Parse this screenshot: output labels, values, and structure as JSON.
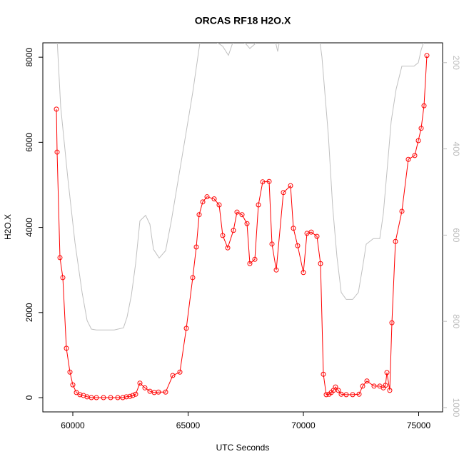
{
  "chart_data": {
    "type": "line",
    "title": "ORCAS RF18 H2O.X",
    "xlabel": "UTC Seconds",
    "ylabel": "H2O.X",
    "xlim": [
      58700,
      76037
    ],
    "ylim": [
      -335,
      8338
    ],
    "y2lim": [
      1010,
      154
    ],
    "xticks": [
      60000,
      65000,
      70000,
      75000
    ],
    "yticks": [
      0,
      2000,
      4000,
      6000,
      8000
    ],
    "y2ticks": [
      200,
      400,
      600,
      800,
      1000
    ],
    "series": [
      {
        "name": "H2O.X",
        "color": "#ff0000",
        "markers": true,
        "x": [
          59288,
          59319,
          59443,
          59567,
          59721,
          59876,
          60000,
          60155,
          60310,
          60464,
          60619,
          60805,
          61022,
          61331,
          61641,
          61950,
          62167,
          62322,
          62477,
          62601,
          62724,
          62910,
          63127,
          63344,
          63530,
          63715,
          64025,
          64335,
          64644,
          64923,
          65201,
          65356,
          65480,
          65635,
          65821,
          66130,
          66347,
          66502,
          66719,
          66966,
          67121,
          67338,
          67555,
          67678,
          67895,
          68050,
          68235,
          68514,
          68638,
          68824,
          69133,
          69443,
          69566,
          69752,
          70000,
          70155,
          70340,
          70588,
          70743,
          70867,
          70991,
          71115,
          71208,
          71301,
          71393,
          71517,
          71641,
          71858,
          72137,
          72415,
          72570,
          72756,
          73065,
          73313,
          73468,
          73561,
          73623,
          73746,
          73839,
          73994,
          74273,
          74551,
          74830,
          74985,
          75108,
          75232,
          75356
        ],
        "values": [
          6780,
          5770,
          3290,
          2820,
          1160,
          600,
          300,
          120,
          70,
          50,
          20,
          0,
          0,
          0,
          0,
          0,
          0,
          20,
          30,
          50,
          80,
          340,
          230,
          150,
          120,
          130,
          130,
          520,
          600,
          1630,
          2820,
          3540,
          4300,
          4600,
          4720,
          4670,
          4530,
          3810,
          3520,
          3930,
          4360,
          4300,
          4090,
          3150,
          3250,
          4530,
          5070,
          5080,
          3610,
          3000,
          4820,
          4980,
          3980,
          3570,
          2940,
          3860,
          3890,
          3790,
          3150,
          550,
          70,
          80,
          120,
          170,
          250,
          170,
          80,
          70,
          70,
          80,
          270,
          390,
          270,
          270,
          230,
          290,
          590,
          170,
          1760,
          3670,
          4380,
          5600,
          5690,
          6040,
          6330,
          6860,
          8040
        ]
      },
      {
        "color": "#c0c0c0",
        "axis": "y2",
        "markers": false,
        "x": [
          59319,
          59474,
          59783,
          60093,
          60402,
          60619,
          60805,
          61022,
          61796,
          62198,
          62353,
          62539,
          62724,
          62910,
          63158,
          63344,
          63499,
          63746,
          64025,
          64273,
          64582,
          64892,
          65201,
          65511,
          65604,
          66502,
          66750,
          66935,
          67059,
          67678,
          67895,
          68050,
          68762,
          68886,
          69010,
          70681,
          70805,
          71084,
          71269,
          71455,
          71641,
          71858,
          72137,
          72384,
          72570,
          72725,
          73034,
          73313,
          73468,
          73654,
          73808,
          74025,
          74273,
          74520,
          74799,
          74985,
          75108,
          75263
        ],
        "values": [
          145,
          302,
          468,
          617,
          733,
          798,
          818,
          820,
          820,
          815,
          790,
          740,
          666,
          567,
          554,
          575,
          633,
          653,
          636,
          567,
          468,
          369,
          269,
          154,
          129,
          162,
          183,
          154,
          129,
          167,
          157,
          129,
          145,
          174,
          137,
          137,
          187,
          369,
          534,
          650,
          733,
          749,
          749,
          733,
          674,
          621,
          608,
          608,
          550,
          435,
          336,
          261,
          208,
          208,
          208,
          200,
          170,
          145
        ]
      }
    ]
  }
}
